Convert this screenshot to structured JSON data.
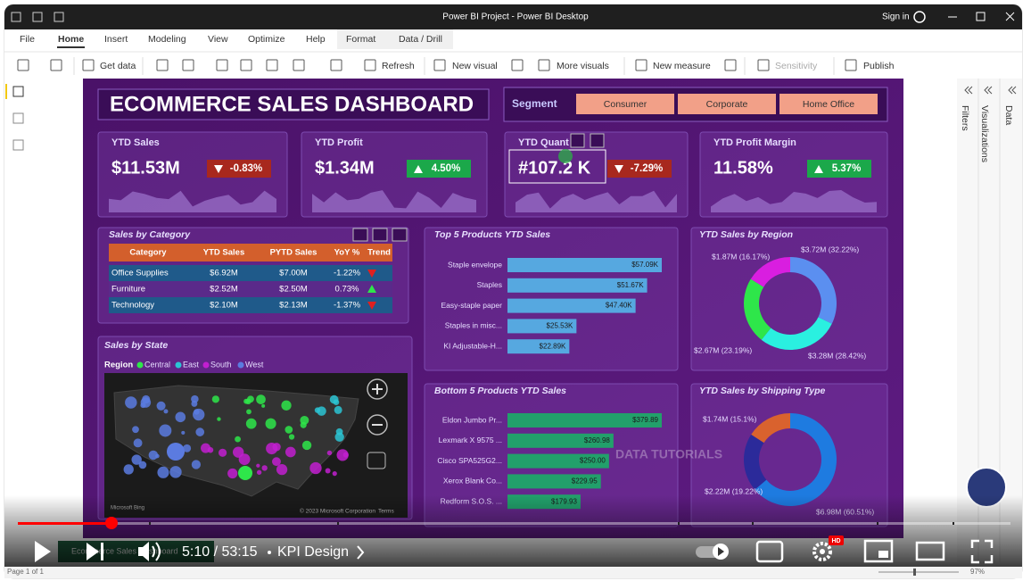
{
  "window": {
    "title": "Power BI Project - Power BI Desktop",
    "sign_in": "Sign in"
  },
  "menu": [
    "File",
    "Home",
    "Insert",
    "Modeling",
    "View",
    "Optimize",
    "Help",
    "Format",
    "Data / Drill"
  ],
  "toolbar": [
    "Get data",
    "Refresh",
    "New visual",
    "More visuals",
    "New measure",
    "Sensitivity",
    "Publish"
  ],
  "panes": [
    "Filters",
    "Visualizations",
    "Data"
  ],
  "dashboard": {
    "title": "ECOMMERCE SALES DASHBOARD",
    "segment": {
      "label": "Segment",
      "options": [
        "Consumer",
        "Corporate",
        "Home Office"
      ]
    },
    "kpis": [
      {
        "label": "YTD Sales",
        "value": "$11.53M",
        "change": "-0.83%",
        "up": false
      },
      {
        "label": "YTD Profit",
        "value": "$1.34M",
        "change": "4.50%",
        "up": true
      },
      {
        "label": "YTD Quant",
        "value": "#107.2 K",
        "change": "-7.29%",
        "up": false
      },
      {
        "label": "YTD Profit Margin",
        "value": "11.58%",
        "change": "5.37%",
        "up": true
      }
    ],
    "category_table": {
      "title": "Sales by Category",
      "columns": [
        "Category",
        "YTD Sales",
        "PYTD Sales",
        "YoY %",
        "Trend"
      ],
      "rows": [
        [
          "Office Supplies",
          "$6.92M",
          "$7.00M",
          "-1.22%"
        ],
        [
          "Furniture",
          "$2.52M",
          "$2.50M",
          "0.73%"
        ],
        [
          "Technology",
          "$2.10M",
          "$2.13M",
          "-1.37%"
        ]
      ],
      "trend_up": [
        false,
        true,
        false
      ]
    },
    "top_products": {
      "type": "bar",
      "title": "Top 5 Products YTD Sales",
      "categories": [
        "Staple envelope",
        "Staples",
        "Easy-staple paper",
        "Staples in misc...",
        "KI Adjustable-H..."
      ],
      "values": [
        57.09,
        51.67,
        47.4,
        25.53,
        22.89
      ],
      "value_labels": [
        "$57.09K",
        "$51.67K",
        "$47.40K",
        "$25.53K",
        "$22.89K"
      ],
      "color": "#56a8e0"
    },
    "map": {
      "title": "Sales by State",
      "legend_title": "Region",
      "legend": [
        "Central",
        "East",
        "South",
        "West"
      ],
      "legend_colors": [
        "#2ee64a",
        "#2bc4d4",
        "#c21ed0",
        "#5b7be0"
      ],
      "provider": "Microsoft Bing",
      "attribution": "© 2023 Microsoft Corporation",
      "terms": "Terms"
    },
    "bottom_products": {
      "type": "bar",
      "title": "Bottom 5 Products YTD Sales",
      "categories": [
        "Eldon Jumbo Pr...",
        "Lexmark X 9575 ...",
        "Cisco SPA525G2...",
        "Xerox Blank Co...",
        "Redform S.O.S. ..."
      ],
      "values": [
        379.89,
        260.98,
        250.0,
        229.95,
        179.93
      ],
      "value_labels": [
        "$379.89",
        "$260.98",
        "$250.00",
        "$229.95",
        "$179.93"
      ],
      "color": "#22a06b"
    },
    "region_donut": {
      "type": "pie",
      "title": "YTD Sales by Region",
      "values": [
        32.22,
        28.42,
        23.19,
        16.17
      ],
      "value_labels": [
        "$3.72M (32.22%)",
        "$3.28M (28.42%)",
        "$2.67M (23.19%)",
        "$1.87M (16.17%)"
      ],
      "colors": [
        "#5b8ff0",
        "#2af0e0",
        "#2ee64a",
        "#d91ee0"
      ]
    },
    "shipping_donut": {
      "type": "pie",
      "title": "YTD Sales by Shipping Type",
      "values": [
        60.51,
        19.22,
        15.1
      ],
      "value_labels": [
        "$6.98M (60.51%)",
        "$2.22M (19.22%)",
        "$1.74M (15.1%)"
      ],
      "colors": [
        "#1e7be0",
        "#2b2a9a",
        "#d9622e"
      ]
    },
    "watermark": "DATA TUTORIALS"
  },
  "video": {
    "time": "5:10 / 53:15",
    "chapter": "KPI Design",
    "quality": "HD"
  },
  "status": {
    "page_tab": "Ecommerce Sales Dashboard",
    "page": "Page 1 of 1",
    "zoom": "97%"
  }
}
